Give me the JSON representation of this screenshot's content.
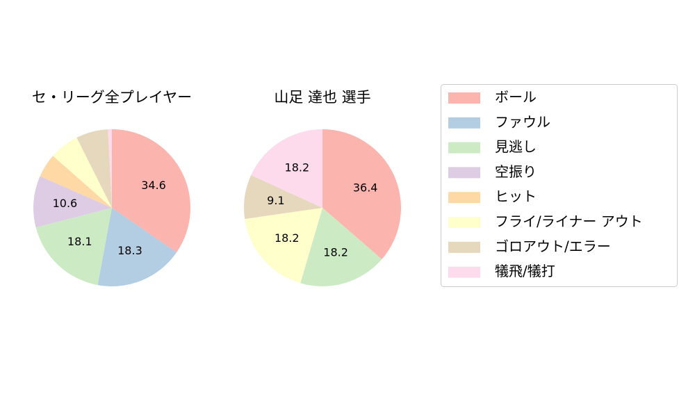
{
  "chart_data": [
    {
      "type": "pie",
      "title": "セ・リーグ全プレイヤー",
      "categories": [
        "ボール",
        "ファウル",
        "見逃し",
        "空振り",
        "ヒット",
        "フライ/ライナー アウト",
        "ゴロアウト/エラー",
        "犠飛/犠打"
      ],
      "values": [
        34.6,
        18.3,
        18.1,
        10.6,
        4.9,
        6.1,
        6.6,
        0.8
      ],
      "colors": [
        "#fbb4ae",
        "#b3cde3",
        "#ccebc5",
        "#decbe4",
        "#fed9a6",
        "#ffffcc",
        "#e5d8bd",
        "#fddaec"
      ]
    },
    {
      "type": "pie",
      "title": "山足 達也  選手",
      "categories": [
        "ボール",
        "ファウル",
        "見逃し",
        "空振り",
        "ヒット",
        "フライ/ライナー アウト",
        "ゴロアウト/エラー",
        "犠飛/犠打"
      ],
      "values": [
        36.4,
        0,
        18.2,
        0,
        0,
        18.2,
        9.1,
        18.2
      ],
      "colors": [
        "#fbb4ae",
        "#b3cde3",
        "#ccebc5",
        "#decbe4",
        "#fed9a6",
        "#ffffcc",
        "#e5d8bd",
        "#fddaec"
      ]
    }
  ]
}
